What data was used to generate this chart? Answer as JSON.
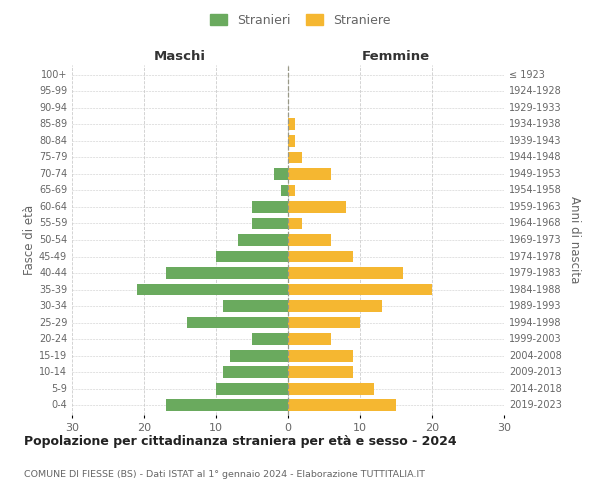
{
  "age_groups": [
    "0-4",
    "5-9",
    "10-14",
    "15-19",
    "20-24",
    "25-29",
    "30-34",
    "35-39",
    "40-44",
    "45-49",
    "50-54",
    "55-59",
    "60-64",
    "65-69",
    "70-74",
    "75-79",
    "80-84",
    "85-89",
    "90-94",
    "95-99",
    "100+"
  ],
  "birth_years": [
    "2019-2023",
    "2014-2018",
    "2009-2013",
    "2004-2008",
    "1999-2003",
    "1994-1998",
    "1989-1993",
    "1984-1988",
    "1979-1983",
    "1974-1978",
    "1969-1973",
    "1964-1968",
    "1959-1963",
    "1954-1958",
    "1949-1953",
    "1944-1948",
    "1939-1943",
    "1934-1938",
    "1929-1933",
    "1924-1928",
    "≤ 1923"
  ],
  "males": [
    17,
    10,
    9,
    8,
    5,
    14,
    9,
    21,
    17,
    10,
    7,
    5,
    5,
    1,
    2,
    0,
    0,
    0,
    0,
    0,
    0
  ],
  "females": [
    15,
    12,
    9,
    9,
    6,
    10,
    13,
    20,
    16,
    9,
    6,
    2,
    8,
    1,
    6,
    2,
    1,
    1,
    0,
    0,
    0
  ],
  "male_color": "#6aaa5e",
  "female_color": "#f5b731",
  "bar_height": 0.72,
  "xlim": 30,
  "header_left": "Maschi",
  "header_right": "Femmine",
  "ylabel_left": "Fasce di età",
  "ylabel_right": "Anni di nascita",
  "legend_male": "Stranieri",
  "legend_female": "Straniere",
  "title": "Popolazione per cittadinanza straniera per età e sesso - 2024",
  "subtitle": "COMUNE DI FIESSE (BS) - Dati ISTAT al 1° gennaio 2024 - Elaborazione TUTTITALIA.IT",
  "grid_color": "#cccccc",
  "background_color": "#ffffff",
  "center_line_color": "#999988",
  "tick_color": "#666666",
  "header_color": "#333333",
  "label_color": "#666666"
}
